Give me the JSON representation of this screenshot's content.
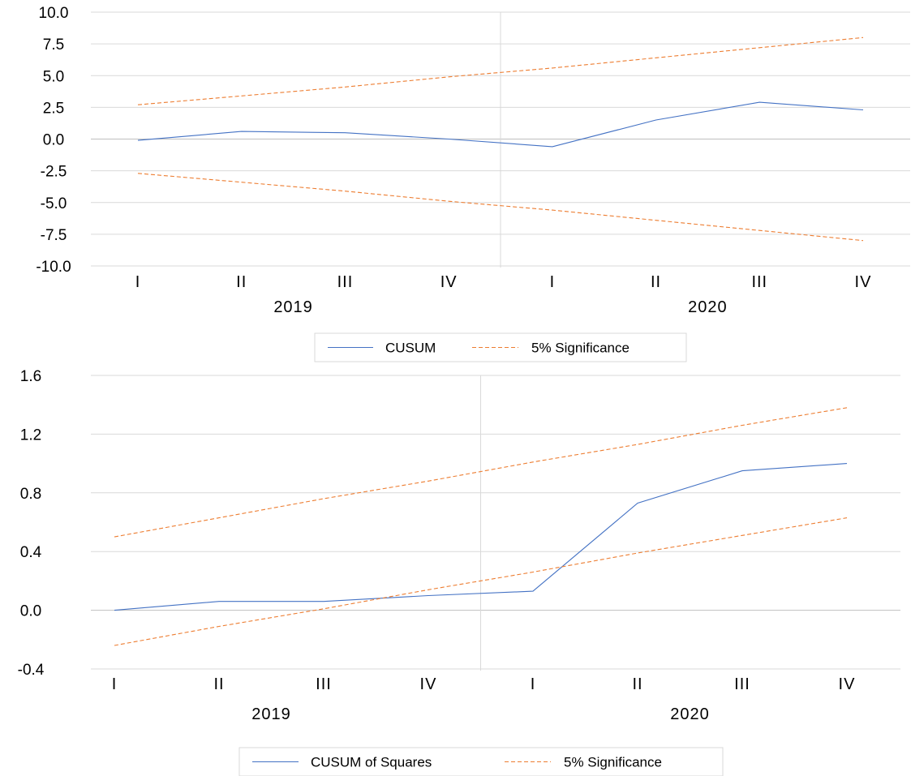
{
  "colors": {
    "cusum": "#4472c4",
    "bound": "#ed7d31",
    "grid": "#d9d9d9",
    "zero": "#bfbfbf",
    "divider": "#d9d9d9"
  },
  "chart_data": [
    {
      "type": "line",
      "categories": [
        "I",
        "II",
        "III",
        "IV",
        "I",
        "II",
        "III",
        "IV"
      ],
      "groups": [
        {
          "label": "2019"
        },
        {
          "label": "2020"
        }
      ],
      "ylim": [
        -10.0,
        10.0
      ],
      "yticks": [
        "10.0",
        "7.5",
        "5.0",
        "2.5",
        "0.0",
        "-2.5",
        "-5.0",
        "-7.5",
        "-10.0"
      ],
      "grid": true,
      "legend_position": "bottom",
      "series": [
        {
          "name": "CUSUM",
          "style": "solid",
          "values": [
            -0.1,
            0.6,
            0.5,
            0.0,
            -0.6,
            1.5,
            2.9,
            2.3
          ]
        },
        {
          "name": "5% Significance",
          "style": "dashed",
          "values": [
            2.7,
            3.4,
            4.1,
            4.9,
            5.6,
            6.4,
            7.2,
            8.0
          ]
        },
        {
          "name": "",
          "style": "dashed",
          "values": [
            -2.7,
            -3.4,
            -4.1,
            -4.9,
            -5.6,
            -6.4,
            -7.2,
            -8.0
          ]
        }
      ]
    },
    {
      "type": "line",
      "categories": [
        "I",
        "II",
        "III",
        "IV",
        "I",
        "II",
        "III",
        "IV"
      ],
      "groups": [
        {
          "label": "2019"
        },
        {
          "label": "2020"
        }
      ],
      "ylim": [
        -0.4,
        1.6
      ],
      "yticks": [
        "1.6",
        "1.2",
        "0.8",
        "0.4",
        "0.0",
        "-0.4"
      ],
      "grid": true,
      "legend_position": "bottom",
      "series": [
        {
          "name": "CUSUM of Squares",
          "style": "solid",
          "values": [
            0.0,
            0.06,
            0.06,
            0.1,
            0.13,
            0.73,
            0.95,
            1.0
          ]
        },
        {
          "name": "5% Significance",
          "style": "dashed",
          "values": [
            0.5,
            0.63,
            0.76,
            0.88,
            1.01,
            1.13,
            1.26,
            1.38
          ]
        },
        {
          "name": "",
          "style": "dashed",
          "values": [
            -0.24,
            -0.11,
            0.01,
            0.14,
            0.26,
            0.39,
            0.51,
            0.63
          ]
        }
      ]
    }
  ]
}
